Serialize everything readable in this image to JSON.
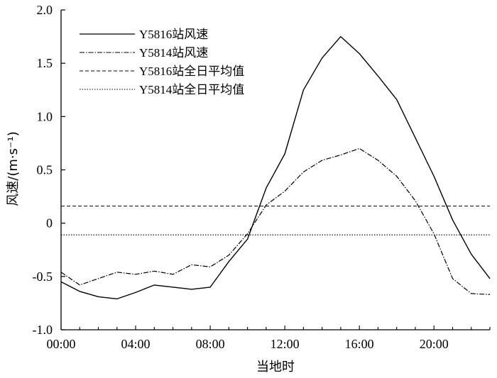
{
  "chart_data": {
    "type": "line",
    "title": "",
    "xlabel": "当地时",
    "ylabel": "风速/(m·s⁻¹)",
    "xlim": [
      0,
      23
    ],
    "ylim": [
      -1.0,
      2.0
    ],
    "x": [
      0,
      1,
      2,
      3,
      4,
      5,
      6,
      7,
      8,
      9,
      10,
      11,
      12,
      13,
      14,
      15,
      16,
      17,
      18,
      19,
      20,
      21,
      22,
      23
    ],
    "x_ticks": [
      {
        "value": 0,
        "label": "00:00"
      },
      {
        "value": 4,
        "label": "04:00"
      },
      {
        "value": 8,
        "label": "08:00"
      },
      {
        "value": 12,
        "label": "12:00"
      },
      {
        "value": 16,
        "label": "16:00"
      },
      {
        "value": 20,
        "label": "20:00"
      }
    ],
    "y_ticks": [
      {
        "value": 2.0,
        "label": "2.0"
      },
      {
        "value": 1.5,
        "label": "1.5"
      },
      {
        "value": 1.0,
        "label": "1.0"
      },
      {
        "value": 0.5,
        "label": "0.5"
      },
      {
        "value": 0,
        "label": "0"
      },
      {
        "value": -0.5,
        "label": "-0.5"
      },
      {
        "value": -1.0,
        "label": "-1.0"
      }
    ],
    "series": [
      {
        "name": "Y5816站风速",
        "style": "solid",
        "values": [
          -0.55,
          -0.64,
          -0.69,
          -0.71,
          -0.65,
          -0.58,
          -0.6,
          -0.62,
          -0.6,
          -0.36,
          -0.15,
          0.33,
          0.65,
          1.25,
          1.55,
          1.75,
          1.59,
          1.38,
          1.16,
          0.8,
          0.44,
          0.03,
          -0.29,
          -0.52
        ]
      },
      {
        "name": "Y5814站风速",
        "style": "dashdot",
        "values": [
          -0.46,
          -0.58,
          -0.52,
          -0.46,
          -0.48,
          -0.45,
          -0.48,
          -0.39,
          -0.41,
          -0.3,
          -0.1,
          0.17,
          0.3,
          0.48,
          0.59,
          0.64,
          0.7,
          0.59,
          0.44,
          0.21,
          -0.1,
          -0.52,
          -0.66,
          -0.67
        ]
      }
    ],
    "reference_lines": [
      {
        "name": "Y5816站全日平均值",
        "style": "dashed",
        "value": 0.16
      },
      {
        "name": "Y5814站全日平均值",
        "style": "dotted",
        "value": -0.11
      }
    ],
    "legend": "top-left",
    "grid": false,
    "colors": {
      "line": "#000000",
      "background": "#ffffff"
    }
  }
}
